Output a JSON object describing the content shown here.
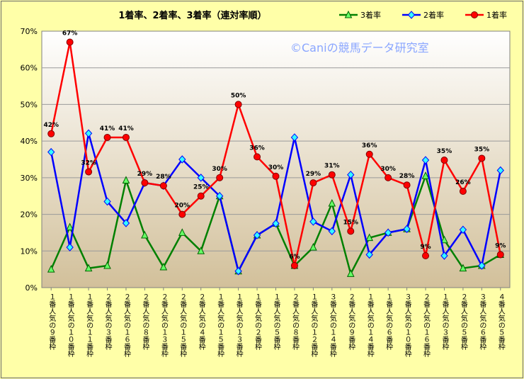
{
  "chart_data": {
    "type": "line",
    "title": "1着率、2着率、3着率（連対率順）",
    "watermark": "©Caniの競馬データ研究室",
    "ylim": [
      0,
      70
    ],
    "yticks": [
      "0%",
      "10%",
      "20%",
      "30%",
      "40%",
      "50%",
      "60%",
      "70%"
    ],
    "grid": true,
    "legend_position": "top-right",
    "categories": [
      "１番人気の９番枠",
      "１番人気の１０番枠",
      "１番人気の１１番枠",
      "２番人気の３番枠",
      "２番人気の１６番枠",
      "２番人気の８番枠",
      "２番人気の１３番枠",
      "２番人気の１５番枠",
      "２番人気の４番枠",
      "１番人気の１５番枠",
      "１番人気の１３番枠",
      "１番人気の２番枠",
      "１番人気の５番枠",
      "２番人気の８番枠",
      "１番人気の１２番枠",
      "３番人気の１４番枠",
      "２番人気の９番枠",
      "１番人気の１４番枠",
      "１番人気の６番枠",
      "３番人気の１０番枠",
      "２番人気の１６番枠",
      "１番人気の３番枠",
      "２番人気の５番枠",
      "３番人気の６番枠",
      "４番人気の５番枠"
    ],
    "series": [
      {
        "name": "3着率",
        "color": "#008000",
        "marker": "triangle",
        "values": [
          5,
          16.5,
          5.3,
          6,
          29.3,
          14.3,
          5.6,
          15,
          10,
          25,
          4.5,
          14.3,
          17.5,
          6,
          11,
          23,
          3.8,
          13.6,
          15,
          16,
          30.5,
          13,
          5.3,
          6,
          9
        ]
      },
      {
        "name": "2着率",
        "color": "#0000ff",
        "marker": "diamond",
        "values": [
          37,
          11,
          42.1,
          23.5,
          17.6,
          28.6,
          27.8,
          35,
          30,
          25,
          4.5,
          14.3,
          17.5,
          41,
          18,
          15.4,
          30.8,
          9,
          15,
          16,
          34.8,
          8.7,
          15.8,
          6,
          32
        ]
      },
      {
        "name": "1着率",
        "color": "#ff0000",
        "marker": "circle",
        "values": [
          42,
          67,
          31.6,
          41,
          41,
          28.6,
          27.8,
          20,
          25,
          30,
          50,
          35.7,
          30.4,
          6,
          28.6,
          30.8,
          15.4,
          36.4,
          30,
          28,
          8.7,
          34.8,
          26.3,
          35.3,
          9
        ]
      }
    ],
    "data_labels": [
      "42%",
      "67%",
      "32%",
      "41%",
      "41%",
      "29%",
      "28%",
      "20%",
      "25%",
      "30%",
      "50%",
      "36%",
      "30%",
      "6%",
      "29%",
      "31%",
      "15%",
      "36%",
      "30%",
      "28%",
      "9%",
      "35%",
      "26%",
      "35%",
      "9%"
    ]
  }
}
